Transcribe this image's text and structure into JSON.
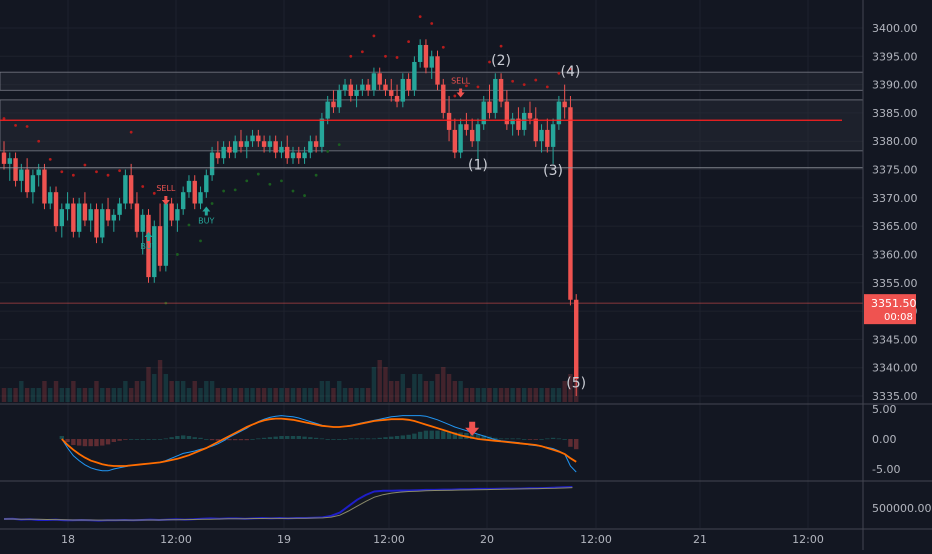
{
  "colors": {
    "background": "#131722",
    "grid": "#1e222d",
    "up": "#26a69a",
    "down": "#ef5350",
    "axis_text": "#b2b5be",
    "separator": "#434651",
    "red_line": "#ff1f1f",
    "price_tag": "#ef5350",
    "sar_up": "#1b5e20",
    "sar_down": "#b71c1c",
    "macd": "#2196f3",
    "signal": "#ff6d00",
    "obv": "#1e1ec8",
    "obv_ma": "#8a8a6a",
    "annotation": "#c9ccd4"
  },
  "chart_data": [
    {
      "type": "candlestick",
      "pane": "price",
      "x_tick_labels": [
        "18",
        "12:00",
        "19",
        "12:00",
        "20",
        "12:00",
        "21",
        "12:00"
      ],
      "y_tick_labels": [
        "3400.00",
        "3395.00",
        "3390.00",
        "3385.00",
        "3380.00",
        "3375.00",
        "3370.00",
        "3365.00",
        "3360.00",
        "3355.00",
        "3350.00",
        "3345.00",
        "3340.00",
        "3335.00"
      ],
      "ylim": [
        3334,
        3404
      ],
      "grid": true,
      "last_price": "3351.50",
      "countdown": "00:08",
      "horizontal_levels": [
        3383.7,
        3375.3,
        3351.4
      ],
      "zones": [
        [
          3378.3,
          3387.3
        ],
        [
          3389.0,
          3392.2
        ]
      ],
      "wave_labels": [
        {
          "text": "(1)",
          "t": 82,
          "price": 3375.0
        },
        {
          "text": "(2)",
          "t": 86,
          "price": 3393.5
        },
        {
          "text": "(3)",
          "t": 95,
          "price": 3374.0
        },
        {
          "text": "(4)",
          "t": 98,
          "price": 3391.5
        },
        {
          "text": "(5)",
          "t": 99,
          "price": 3336.5
        }
      ],
      "signals": [
        {
          "text": "SELL",
          "t": 28,
          "price": 3370.5,
          "kind": "sell"
        },
        {
          "text": "BUY",
          "t": 25,
          "price": 3361.5,
          "kind": "buy"
        },
        {
          "text": "BUY",
          "t": 35,
          "price": 3366.0,
          "kind": "buy"
        },
        {
          "text": "SELL",
          "t": 79,
          "price": 3389.5,
          "kind": "sell"
        }
      ],
      "candles": [
        [
          3378,
          3380,
          3375,
          3376
        ],
        [
          3376,
          3378,
          3373,
          3377
        ],
        [
          3377,
          3378,
          3372,
          3373
        ],
        [
          3373,
          3376,
          3371,
          3375
        ],
        [
          3375,
          3377,
          3370,
          3371
        ],
        [
          3371,
          3375,
          3369,
          3374
        ],
        [
          3374,
          3376,
          3372,
          3375
        ],
        [
          3375,
          3376,
          3368,
          3369
        ],
        [
          3369,
          3372,
          3368,
          3371
        ],
        [
          3371,
          3372,
          3364,
          3365
        ],
        [
          3365,
          3369,
          3363,
          3368
        ],
        [
          3368,
          3371,
          3366,
          3369
        ],
        [
          3369,
          3370,
          3363,
          3364
        ],
        [
          3364,
          3370,
          3363,
          3369
        ],
        [
          3369,
          3371,
          3365,
          3366
        ],
        [
          3366,
          3369,
          3364,
          3368
        ],
        [
          3368,
          3369,
          3362,
          3363
        ],
        [
          3363,
          3369,
          3362,
          3368
        ],
        [
          3368,
          3370,
          3365,
          3366
        ],
        [
          3366,
          3368,
          3364,
          3367
        ],
        [
          3367,
          3370,
          3366,
          3369
        ],
        [
          3369,
          3375,
          3368,
          3374
        ],
        [
          3374,
          3376,
          3368,
          3369
        ],
        [
          3369,
          3371,
          3363,
          3364
        ],
        [
          3364,
          3368,
          3360,
          3367
        ],
        [
          3367,
          3368,
          3355,
          3356
        ],
        [
          3356,
          3366,
          3355,
          3365
        ],
        [
          3365,
          3369,
          3357,
          3358
        ],
        [
          3358,
          3370,
          3357,
          3369
        ],
        [
          3369,
          3370,
          3365,
          3366
        ],
        [
          3366,
          3369,
          3364,
          3368
        ],
        [
          3368,
          3372,
          3367,
          3371
        ],
        [
          3371,
          3374,
          3370,
          3373
        ],
        [
          3373,
          3374,
          3368,
          3369
        ],
        [
          3369,
          3372,
          3368,
          3371
        ],
        [
          3371,
          3375,
          3370,
          3374
        ],
        [
          3374,
          3379,
          3373,
          3378
        ],
        [
          3378,
          3380,
          3376,
          3377
        ],
        [
          3377,
          3380,
          3376,
          3379
        ],
        [
          3379,
          3380,
          3377,
          3378
        ],
        [
          3378,
          3381,
          3377,
          3380
        ],
        [
          3380,
          3382,
          3378,
          3379
        ],
        [
          3379,
          3381,
          3377,
          3380
        ],
        [
          3380,
          3382,
          3379,
          3381
        ],
        [
          3381,
          3382,
          3379,
          3380
        ],
        [
          3380,
          3381,
          3378,
          3379
        ],
        [
          3379,
          3381,
          3378,
          3380
        ],
        [
          3380,
          3381,
          3377,
          3378
        ],
        [
          3378,
          3380,
          3377,
          3379
        ],
        [
          3379,
          3381,
          3376,
          3377
        ],
        [
          3377,
          3379,
          3376,
          3378
        ],
        [
          3378,
          3379,
          3376,
          3377
        ],
        [
          3377,
          3379,
          3376,
          3378
        ],
        [
          3378,
          3381,
          3377,
          3380
        ],
        [
          3380,
          3381,
          3378,
          3379
        ],
        [
          3379,
          3385,
          3378,
          3384
        ],
        [
          3384,
          3388,
          3383,
          3387
        ],
        [
          3387,
          3389,
          3385,
          3386
        ],
        [
          3386,
          3390,
          3385,
          3389
        ],
        [
          3389,
          3391,
          3388,
          3390
        ],
        [
          3390,
          3391,
          3387,
          3388
        ],
        [
          3388,
          3390,
          3386,
          3389
        ],
        [
          3389,
          3391,
          3388,
          3390
        ],
        [
          3390,
          3391,
          3388,
          3389
        ],
        [
          3389,
          3393,
          3388,
          3392
        ],
        [
          3392,
          3393,
          3389,
          3390
        ],
        [
          3390,
          3391,
          3388,
          3389
        ],
        [
          3389,
          3391,
          3387,
          3388
        ],
        [
          3388,
          3390,
          3386,
          3387
        ],
        [
          3387,
          3392,
          3386,
          3391
        ],
        [
          3391,
          3392,
          3388,
          3389
        ],
        [
          3389,
          3395,
          3388,
          3394
        ],
        [
          3394,
          3398,
          3393,
          3397
        ],
        [
          3397,
          3398,
          3392,
          3393
        ],
        [
          3393,
          3396,
          3391,
          3395
        ],
        [
          3395,
          3396,
          3389,
          3390
        ],
        [
          3390,
          3391,
          3384,
          3385
        ],
        [
          3385,
          3388,
          3380,
          3382
        ],
        [
          3382,
          3384,
          3377,
          3378
        ],
        [
          3378,
          3384,
          3377,
          3383
        ],
        [
          3383,
          3385,
          3381,
          3382
        ],
        [
          3382,
          3384,
          3379,
          3380
        ],
        [
          3380,
          3384,
          3376,
          3383
        ],
        [
          3383,
          3388,
          3382,
          3387
        ],
        [
          3387,
          3390,
          3384,
          3385
        ],
        [
          3385,
          3392,
          3384,
          3391
        ],
        [
          3391,
          3392,
          3386,
          3387
        ],
        [
          3387,
          3389,
          3382,
          3383
        ],
        [
          3383,
          3385,
          3381,
          3384
        ],
        [
          3384,
          3386,
          3381,
          3382
        ],
        [
          3382,
          3386,
          3381,
          3385
        ],
        [
          3385,
          3387,
          3383,
          3384
        ],
        [
          3384,
          3386,
          3379,
          3380
        ],
        [
          3380,
          3383,
          3378,
          3382
        ],
        [
          3382,
          3384,
          3378,
          3379
        ],
        [
          3379,
          3384,
          3376,
          3383
        ],
        [
          3383,
          3388,
          3382,
          3387
        ],
        [
          3387,
          3390,
          3384,
          3386
        ],
        [
          3386,
          3388,
          3351,
          3352
        ],
        [
          3352,
          3353,
          3335,
          3338
        ]
      ]
    },
    {
      "type": "bar",
      "pane": "volume",
      "values": [
        2,
        2,
        2,
        3,
        2,
        2,
        2,
        3,
        2,
        3,
        2,
        2,
        3,
        2,
        2,
        2,
        3,
        2,
        2,
        2,
        2,
        3,
        2,
        3,
        3,
        5,
        4,
        6,
        4,
        3,
        3,
        3,
        2,
        3,
        2,
        3,
        3,
        2,
        2,
        2,
        2,
        2,
        2,
        2,
        2,
        2,
        2,
        2,
        2,
        2,
        2,
        2,
        2,
        2,
        2,
        3,
        3,
        2,
        3,
        2,
        2,
        2,
        2,
        2,
        5,
        6,
        5,
        3,
        3,
        4,
        2,
        4,
        4,
        3,
        3,
        4,
        5,
        4,
        3,
        3,
        2,
        2,
        2,
        2,
        2,
        2,
        2,
        2,
        2,
        2,
        2,
        2,
        2,
        2,
        2,
        2,
        2,
        3,
        4,
        5
      ]
    },
    {
      "type": "line",
      "pane": "macd",
      "y_tick_labels": [
        "5.00",
        "0.00",
        "-5.00"
      ],
      "ylim": [
        -7,
        7
      ],
      "series": [
        {
          "values": [
            0,
            -1.5,
            -2.8,
            -3.6,
            -4.3,
            -4.8,
            -5.1,
            -5.3,
            -5.3,
            -5.0,
            -4.8,
            -4.6,
            -4.4,
            -4.3,
            -4.2,
            -4.1,
            -4.0,
            -3.9,
            -3.6,
            -3.2,
            -2.8,
            -2.4,
            -2.2,
            -2.0,
            -1.7,
            -1.5,
            -1.2,
            -0.8,
            -0.3,
            0.3,
            0.8,
            1.3,
            1.8,
            2.4,
            2.9,
            3.3,
            3.6,
            3.8,
            3.9,
            3.8,
            3.7,
            3.5,
            3.2,
            2.9,
            2.6,
            2.3,
            2.1,
            2.0,
            2.0,
            2.1,
            2.3,
            2.5,
            2.7,
            2.9,
            3.1,
            3.3,
            3.5,
            3.7,
            3.8,
            3.9,
            3.9,
            3.9,
            3.9,
            3.8,
            3.5,
            3.2,
            2.8,
            2.4,
            2.0,
            1.7,
            1.4,
            1.1,
            0.8,
            0.5,
            0.2,
            -0.1,
            -0.3,
            -0.4,
            -0.5,
            -0.6,
            -0.8,
            -1.0,
            -1.1,
            -1.2,
            -1.4,
            -1.6,
            -2.0,
            -2.5,
            -4.5,
            -5.5
          ]
        },
        {
          "values": [
            0,
            -1.0,
            -1.8,
            -2.5,
            -3.1,
            -3.6,
            -3.9,
            -4.2,
            -4.4,
            -4.5,
            -4.5,
            -4.5,
            -4.4,
            -4.3,
            -4.2,
            -4.1,
            -4.0,
            -3.9,
            -3.7,
            -3.5,
            -3.3,
            -3.0,
            -2.7,
            -2.3,
            -1.9,
            -1.5,
            -1.0,
            -0.5,
            0.0,
            0.5,
            1.0,
            1.5,
            2.0,
            2.4,
            2.8,
            3.1,
            3.3,
            3.4,
            3.4,
            3.3,
            3.2,
            3.0,
            2.8,
            2.6,
            2.4,
            2.2,
            2.1,
            2.0,
            2.0,
            2.1,
            2.2,
            2.4,
            2.6,
            2.8,
            3.0,
            3.1,
            3.2,
            3.3,
            3.3,
            3.3,
            3.2,
            3.0,
            2.7,
            2.4,
            2.1,
            1.8,
            1.5,
            1.2,
            0.9,
            0.6,
            0.4,
            0.2,
            0.0,
            -0.1,
            -0.2,
            -0.3,
            -0.4,
            -0.5,
            -0.6,
            -0.7,
            -0.8,
            -0.9,
            -1.0,
            -1.2,
            -1.5,
            -1.8,
            -2.1,
            -2.5,
            -3.2,
            -3.8
          ]
        }
      ],
      "histogram": [
        0.5,
        -0.5,
        -1.0,
        -1.1,
        -1.2,
        -1.2,
        -1.2,
        -1.1,
        -0.9,
        -0.5,
        -0.3,
        -0.1,
        0,
        0,
        0,
        0,
        0,
        0,
        0.1,
        0.3,
        0.5,
        0.6,
        0.5,
        0.3,
        0.2,
        0,
        -0.2,
        -0.3,
        -0.3,
        -0.2,
        -0.2,
        -0.2,
        -0.2,
        0,
        0.1,
        0.2,
        0.3,
        0.4,
        0.5,
        0.5,
        0.5,
        0.5,
        0.4,
        0.3,
        0.2,
        0.1,
        0,
        0,
        0,
        0,
        0.1,
        0.1,
        0.1,
        0.1,
        0.1,
        0.2,
        0.3,
        0.4,
        0.5,
        0.6,
        0.7,
        0.9,
        1.2,
        1.4,
        1.4,
        1.4,
        1.3,
        1.2,
        1.1,
        1.1,
        1.0,
        0.9,
        0.8,
        0.6,
        0.4,
        0.2,
        0.1,
        0.1,
        0.1,
        0.1,
        0,
        -0.1,
        -0.1,
        0,
        0.1,
        0.2,
        0.1,
        0,
        -1.3,
        -1.7
      ],
      "signal_marker": {
        "index": 71,
        "kind": "sell"
      }
    },
    {
      "type": "line",
      "pane": "obv",
      "y_tick_labels": [
        "500000.00"
      ],
      "ylim": [
        -200000,
        1200000
      ],
      "series": [
        {
          "values": [
            0,
            10000,
            -20000,
            -10000,
            -30000,
            -30000,
            -20000,
            -40000,
            -40000,
            -30000,
            -40000,
            -50000,
            -40000,
            -40000,
            -30000,
            -40000,
            -30000,
            -20000,
            -30000,
            -20000,
            -10000,
            -20000,
            -10000,
            10000,
            20000,
            10000,
            20000,
            20000,
            10000,
            20000,
            30000,
            20000,
            30000,
            20000,
            30000,
            30000,
            40000,
            50000,
            100000,
            200000,
            400000,
            600000,
            750000,
            860000,
            880000,
            880000,
            890000,
            890000,
            900000,
            910000,
            910000,
            920000,
            920000,
            930000,
            930000,
            940000,
            940000,
            940000,
            950000,
            950000,
            950000,
            960000,
            960000,
            970000,
            980000,
            990000,
            1000000
          ]
        },
        {
          "values": [
            0,
            0,
            -5000,
            -5000,
            -10000,
            -15000,
            -20000,
            -25000,
            -30000,
            -30000,
            -30000,
            -35000,
            -35000,
            -35000,
            -35000,
            -35000,
            -30000,
            -30000,
            -30000,
            -25000,
            -25000,
            -20000,
            -15000,
            -10000,
            -5000,
            0,
            5000,
            10000,
            10000,
            15000,
            15000,
            20000,
            20000,
            20000,
            25000,
            25000,
            30000,
            35000,
            60000,
            120000,
            250000,
            400000,
            550000,
            680000,
            760000,
            810000,
            840000,
            860000,
            870000,
            880000,
            890000,
            895000,
            900000,
            905000,
            910000,
            915000,
            920000,
            925000,
            930000,
            935000,
            940000,
            945000,
            950000,
            955000,
            960000,
            970000,
            980000
          ]
        }
      ]
    }
  ]
}
